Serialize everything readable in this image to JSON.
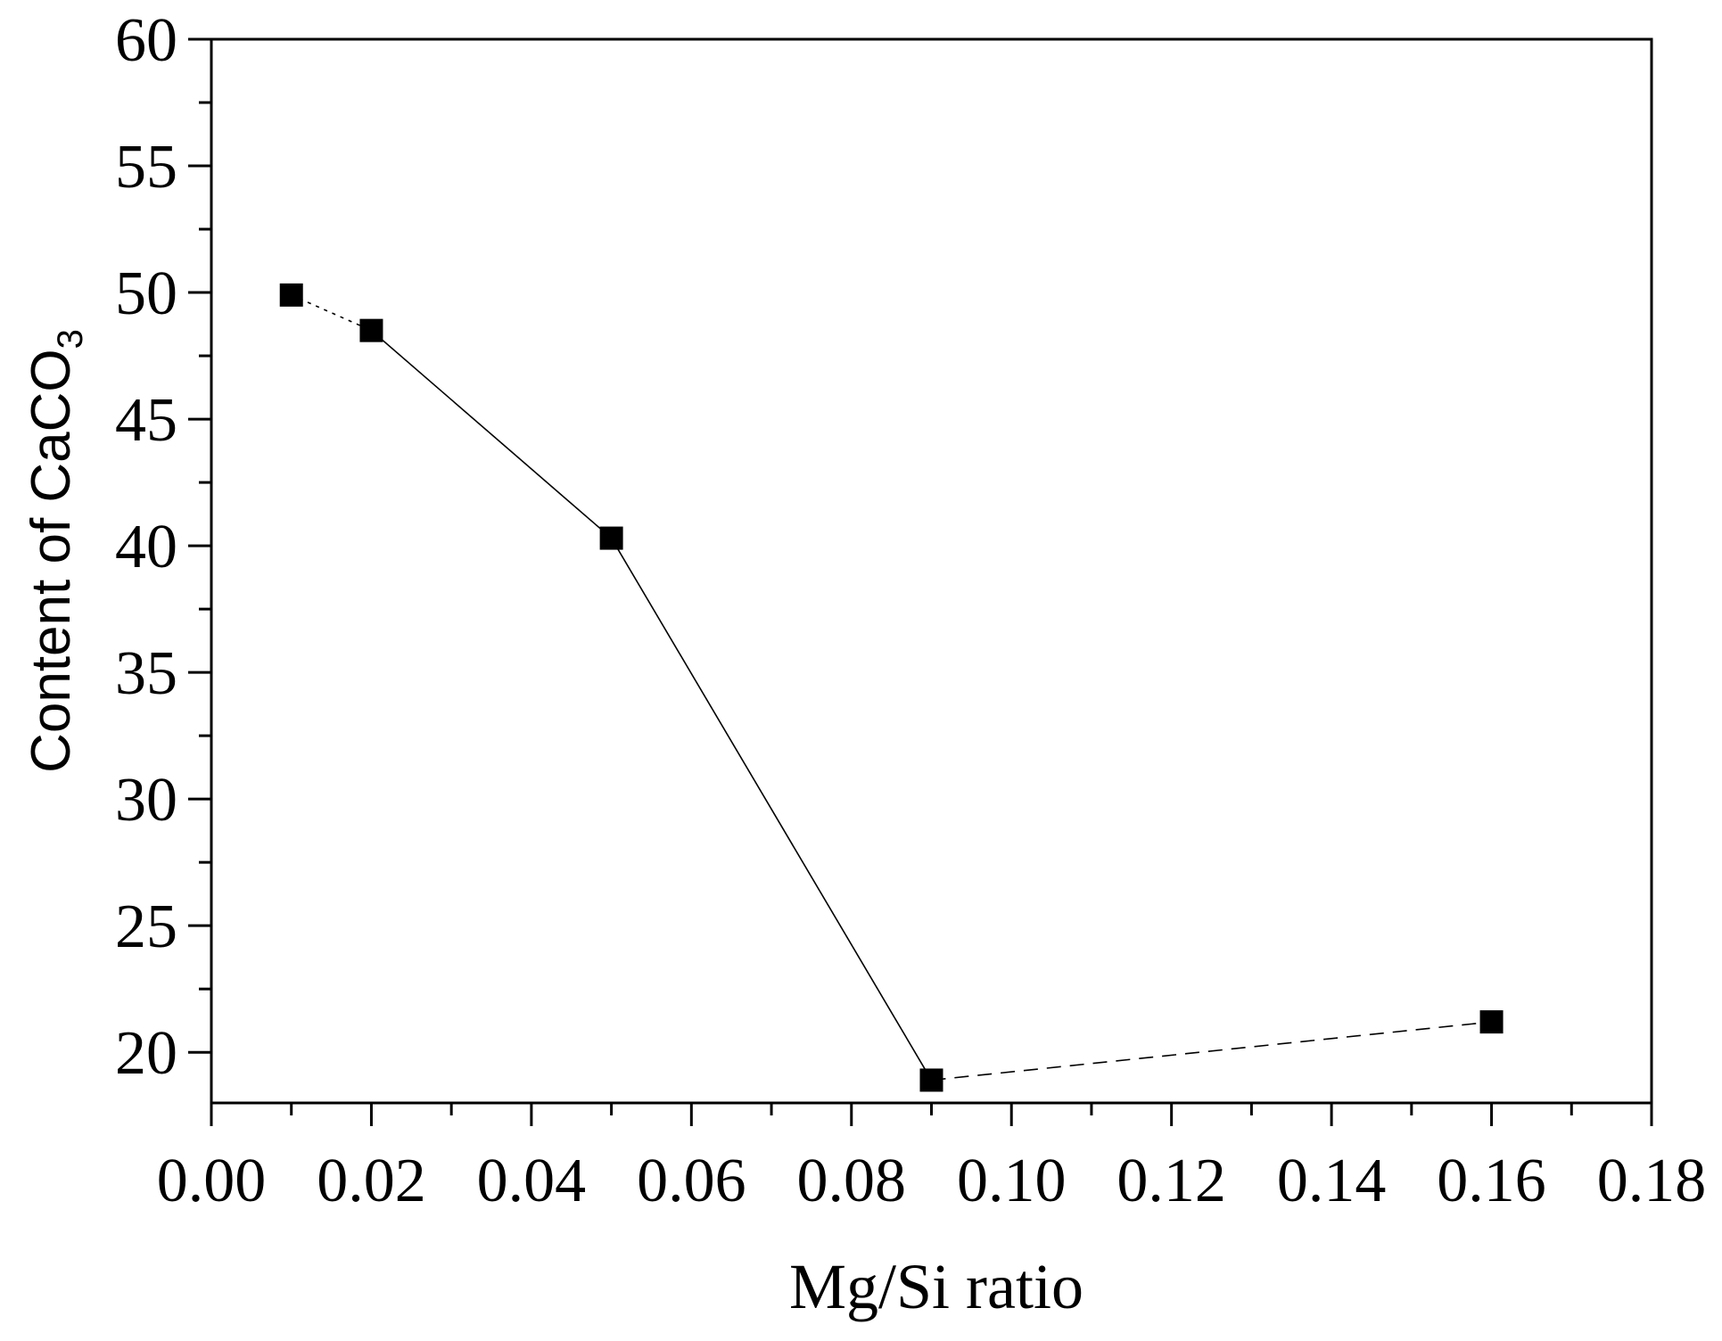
{
  "chart_data": {
    "type": "line",
    "xlabel": "Mg/Si ratio",
    "ylabel": {
      "main": "Content of CaCO",
      "subscript": "3"
    },
    "xlim": [
      0.0,
      0.18
    ],
    "ylim": [
      18.0,
      60.0
    ],
    "x_ticks": [
      0.0,
      0.02,
      0.04,
      0.06,
      0.08,
      0.1,
      0.12,
      0.14,
      0.16,
      0.18
    ],
    "x_tick_labels": [
      "0.00",
      "0.02",
      "0.04",
      "0.06",
      "0.08",
      "0.10",
      "0.12",
      "0.14",
      "0.16",
      "0.18"
    ],
    "y_ticks": [
      20,
      25,
      30,
      35,
      40,
      45,
      50,
      55,
      60
    ],
    "y_tick_labels": [
      "20",
      "25",
      "30",
      "35",
      "40",
      "45",
      "50",
      "55",
      "60"
    ],
    "grid": false,
    "series": [
      {
        "x": [
          0.01,
          0.02,
          0.05,
          0.09,
          0.16
        ],
        "y": [
          49.9,
          48.5,
          40.3,
          18.9,
          21.2
        ],
        "marker": "square",
        "color": "#000000",
        "segment_styles": [
          "dotted",
          "solid",
          "solid",
          "dashed"
        ]
      }
    ]
  }
}
